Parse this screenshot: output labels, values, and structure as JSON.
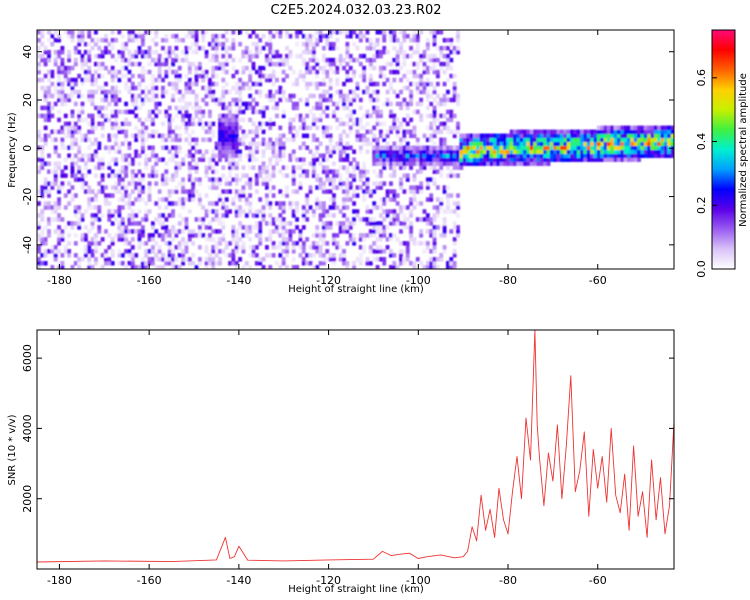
{
  "figure": {
    "title": "C2E5.2024.032.03.23.R02"
  },
  "chart_data": [
    {
      "type": "heatmap",
      "xlabel": "Height of straight line (km)",
      "ylabel": "Frequency (Hz)",
      "xlim": [
        -185,
        -43
      ],
      "ylim": [
        -50,
        49
      ],
      "xticks": [
        -180,
        -160,
        -140,
        -120,
        -100,
        -80,
        -60
      ],
      "yticks": [
        -40,
        -20,
        0,
        20,
        40
      ],
      "colorbar": {
        "label": "Normalized spectral amplitude",
        "range": [
          0,
          0.75
        ],
        "ticks": [
          "0.0",
          "0.2",
          "0.4",
          "0.6"
        ],
        "tick_values": [
          0,
          0.2,
          0.4,
          0.6
        ],
        "colormap": [
          "#ffffff",
          "#d9c2f7",
          "#9a5cf0",
          "#5a00e8",
          "#0000ff",
          "#00a0ff",
          "#00f0d0",
          "#40f040",
          "#c8f000",
          "#ffd000",
          "#ff6000",
          "#ff0000",
          "#ff0a78"
        ]
      },
      "regions": [
        {
          "x_from": -185,
          "x_to": -91,
          "pattern": "noise",
          "amplitude": "low"
        },
        {
          "x_from": -145,
          "x_to": -140,
          "pattern": "blob",
          "center_freq": 5,
          "amplitude": "0.25"
        },
        {
          "x_from": -110,
          "x_to": -91,
          "pattern": "band",
          "center_freq": -3,
          "amplitude": "0.3"
        },
        {
          "x_from": -91,
          "x_to": -43,
          "pattern": "band",
          "center_freq_from": -1,
          "center_freq_to": 3,
          "amplitude": "0.4-0.7"
        }
      ]
    },
    {
      "type": "line",
      "xlabel": "Height of straight line (km)",
      "ylabel": "SNR (10 * v/v)",
      "xlim": [
        -185,
        -43
      ],
      "ylim": [
        0,
        6800
      ],
      "xticks": [
        -180,
        -160,
        -140,
        -120,
        -100,
        -80,
        -60
      ],
      "yticks": [
        2000,
        4000,
        6000
      ],
      "series": [
        {
          "color": "#ee3333",
          "x": [
            -185,
            -170,
            -155,
            -145,
            -143,
            -142,
            -141,
            -140,
            -138,
            -130,
            -120,
            -110,
            -108,
            -106,
            -104,
            -102,
            -100,
            -98,
            -95,
            -92,
            -90,
            -89,
            -88,
            -87,
            -86,
            -85,
            -84,
            -83,
            -82,
            -81,
            -80,
            -79,
            -78,
            -77,
            -76,
            -75,
            -74,
            -73.5,
            -73,
            -72,
            -71,
            -70,
            -69,
            -68,
            -67,
            -66,
            -65,
            -64,
            -63,
            -62,
            -61,
            -60,
            -59,
            -58,
            -57,
            -56,
            -55,
            -54,
            -53,
            -52,
            -51,
            -50,
            -49,
            -48,
            -47,
            -46,
            -45,
            -44,
            -43
          ],
          "y": [
            200,
            230,
            210,
            260,
            900,
            300,
            350,
            650,
            250,
            230,
            260,
            280,
            500,
            380,
            420,
            450,
            300,
            350,
            400,
            320,
            350,
            500,
            1200,
            800,
            2100,
            1100,
            1700,
            900,
            2300,
            1400,
            1000,
            2200,
            3200,
            2000,
            4300,
            3100,
            6800,
            4100,
            3200,
            1800,
            3300,
            2500,
            4100,
            2000,
            3500,
            5500,
            2200,
            2800,
            3900,
            1500,
            3400,
            2300,
            3200,
            1900,
            4000,
            2100,
            1600,
            2700,
            1100,
            3500,
            1500,
            2200,
            900,
            3100,
            1400,
            2600,
            1000,
            1800,
            4200
          ]
        }
      ]
    }
  ]
}
